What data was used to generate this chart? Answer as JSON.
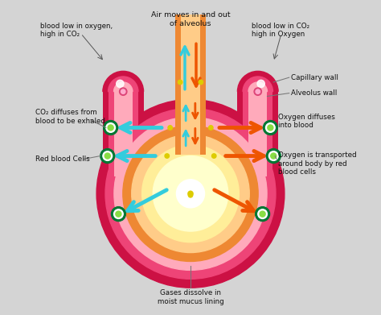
{
  "bg_color": "#d4d4d4",
  "labels": {
    "top_center": "Air moves in and out\nof alveolus",
    "top_left": "blood low in oxygen,\nhigh in CO₂",
    "top_right": "blood low in CO₂\nhigh in Oxygen",
    "capillary_wall": "Capillary wall",
    "alveolus_wall": "Alveolus wall",
    "co2_diffuses": "CO₂ diffuses from\nblood to be exhaled",
    "oxygen_diffuses": "Oxygen diffuses\ninto blood",
    "red_blood_cells": "Red blood Cells",
    "oxygen_transport": "Oxygen is transported\naround body by red\nblood cells",
    "gases_dissolve": "Gases dissolve in\nmoist mucus lining"
  },
  "colors": {
    "cap_outer": "#cc1144",
    "cap_mid": "#ee4477",
    "cap_inner": "#ffaabb",
    "alv_orange": "#ee8833",
    "alv_light": "#ffcc88",
    "alv_core": "#ffee99",
    "alv_glow": "#ffffcc",
    "duct_orange": "#ee8833",
    "duct_light": "#ffcc88",
    "arrow_cyan": "#33ccdd",
    "arrow_orange": "#ee5500",
    "rbc_dark": "#007733",
    "rbc_light": "#88dd44",
    "dot_yellow": "#ddcc00",
    "line_color": "#666666",
    "text_color": "#222222"
  }
}
